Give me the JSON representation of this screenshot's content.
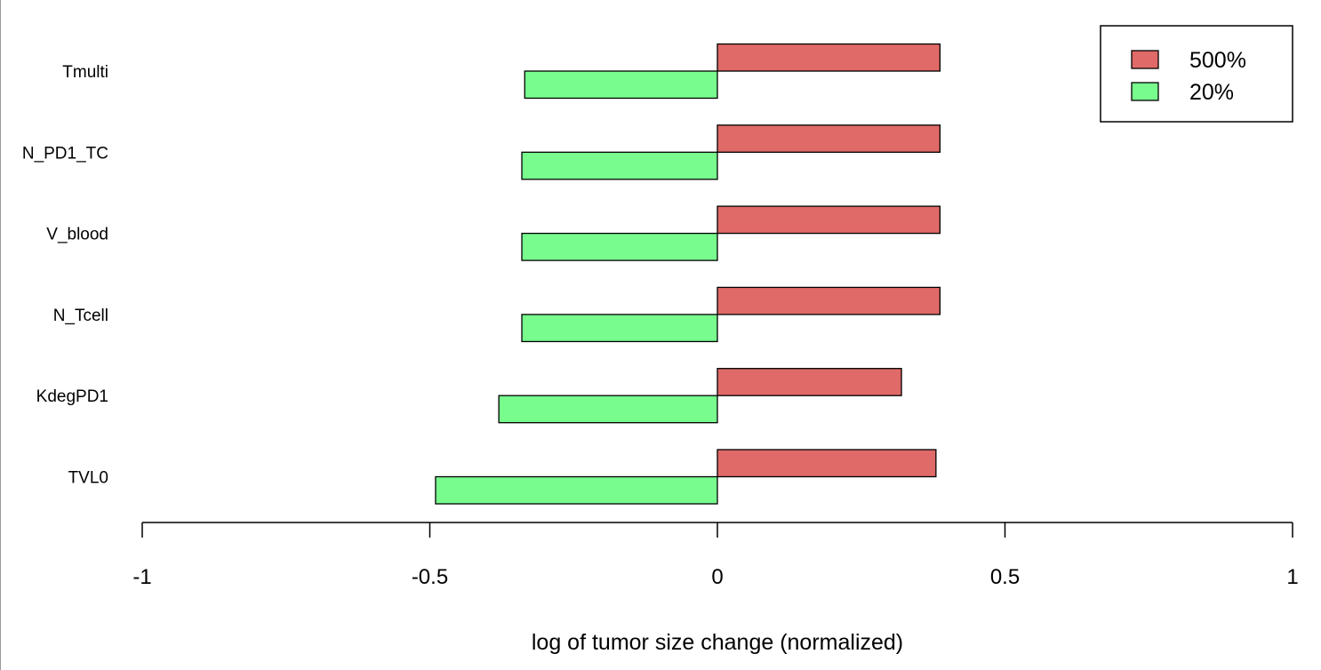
{
  "chart_data": {
    "type": "bar",
    "orientation": "horizontal",
    "categories": [
      "TVL0",
      "KdegPD1",
      "N_Tcell",
      "V_blood",
      "N_PD1_TC",
      "Tmulti"
    ],
    "series": [
      {
        "name": "500%",
        "color": "#df6a67",
        "values": [
          0.38,
          0.32,
          0.387,
          0.387,
          0.387,
          0.387
        ]
      },
      {
        "name": "20%",
        "color": "#77fc8d",
        "values": [
          -0.49,
          -0.38,
          -0.34,
          -0.34,
          -0.34,
          -0.335
        ]
      }
    ],
    "title": "",
    "xlabel": "log of tumor size change (normalized)",
    "ylabel": "",
    "xlim": [
      -1,
      1
    ],
    "xticks": [
      -1,
      -0.5,
      0,
      0.5,
      1
    ],
    "xtick_labels": [
      "-1",
      "-0.5",
      "0",
      "0.5",
      "1"
    ],
    "grid": false,
    "legend_position": "top-right"
  }
}
